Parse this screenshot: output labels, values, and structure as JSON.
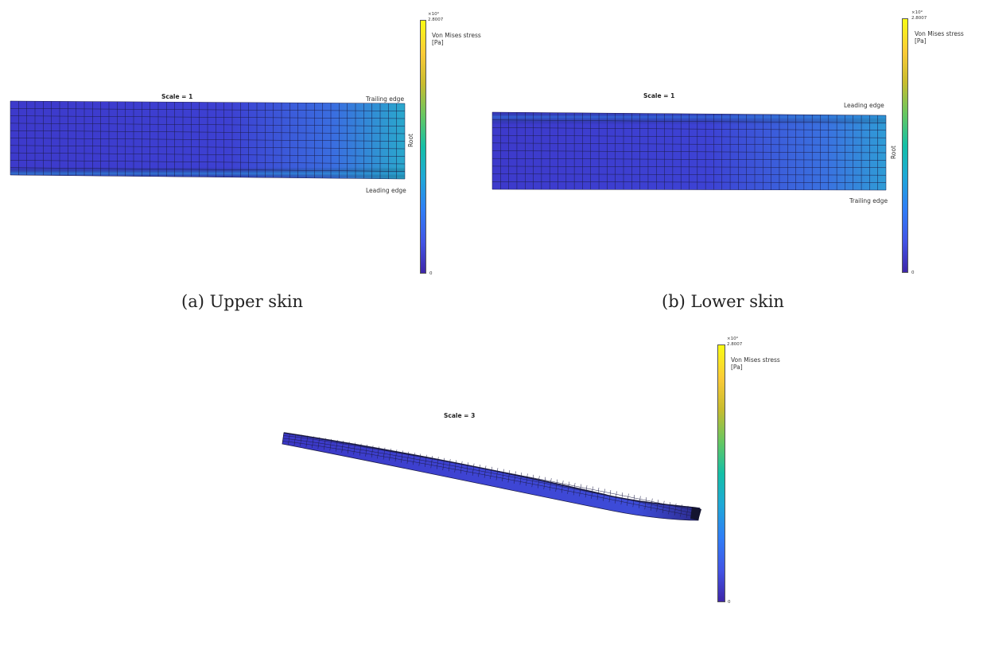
{
  "panels": [
    {
      "id": "a",
      "scale_label": "Scale = 1",
      "top_edge_label": "Trailing edge",
      "bottom_edge_label": "Leading edge",
      "side_label": "Root",
      "colorbar": {
        "exponent": "×10⁹",
        "max": "2.8007",
        "min": "0",
        "title_line1": "Von Mises stress",
        "title_line2": "[Pa]"
      },
      "caption": "(a) Upper skin"
    },
    {
      "id": "b",
      "scale_label": "Scale = 1",
      "top_edge_label": "Leading edge",
      "bottom_edge_label": "Trailing edge",
      "side_label": "Root",
      "colorbar": {
        "exponent": "×10⁹",
        "max": "2.8007",
        "min": "0",
        "title_line1": "Von Mises stress",
        "title_line2": "[Pa]"
      },
      "caption": "(b) Lower skin"
    },
    {
      "id": "c",
      "scale_label": "Scale = 3",
      "colorbar": {
        "exponent": "×10⁹",
        "max": "2.8007",
        "min": "0",
        "title_line1": "Von Mises stress",
        "title_line2": "[Pa]"
      }
    }
  ],
  "colors": {
    "mesh_base": "#3f3ed0",
    "mesh_line": "#1a1a40",
    "high_stress": "#2fb9c4"
  }
}
